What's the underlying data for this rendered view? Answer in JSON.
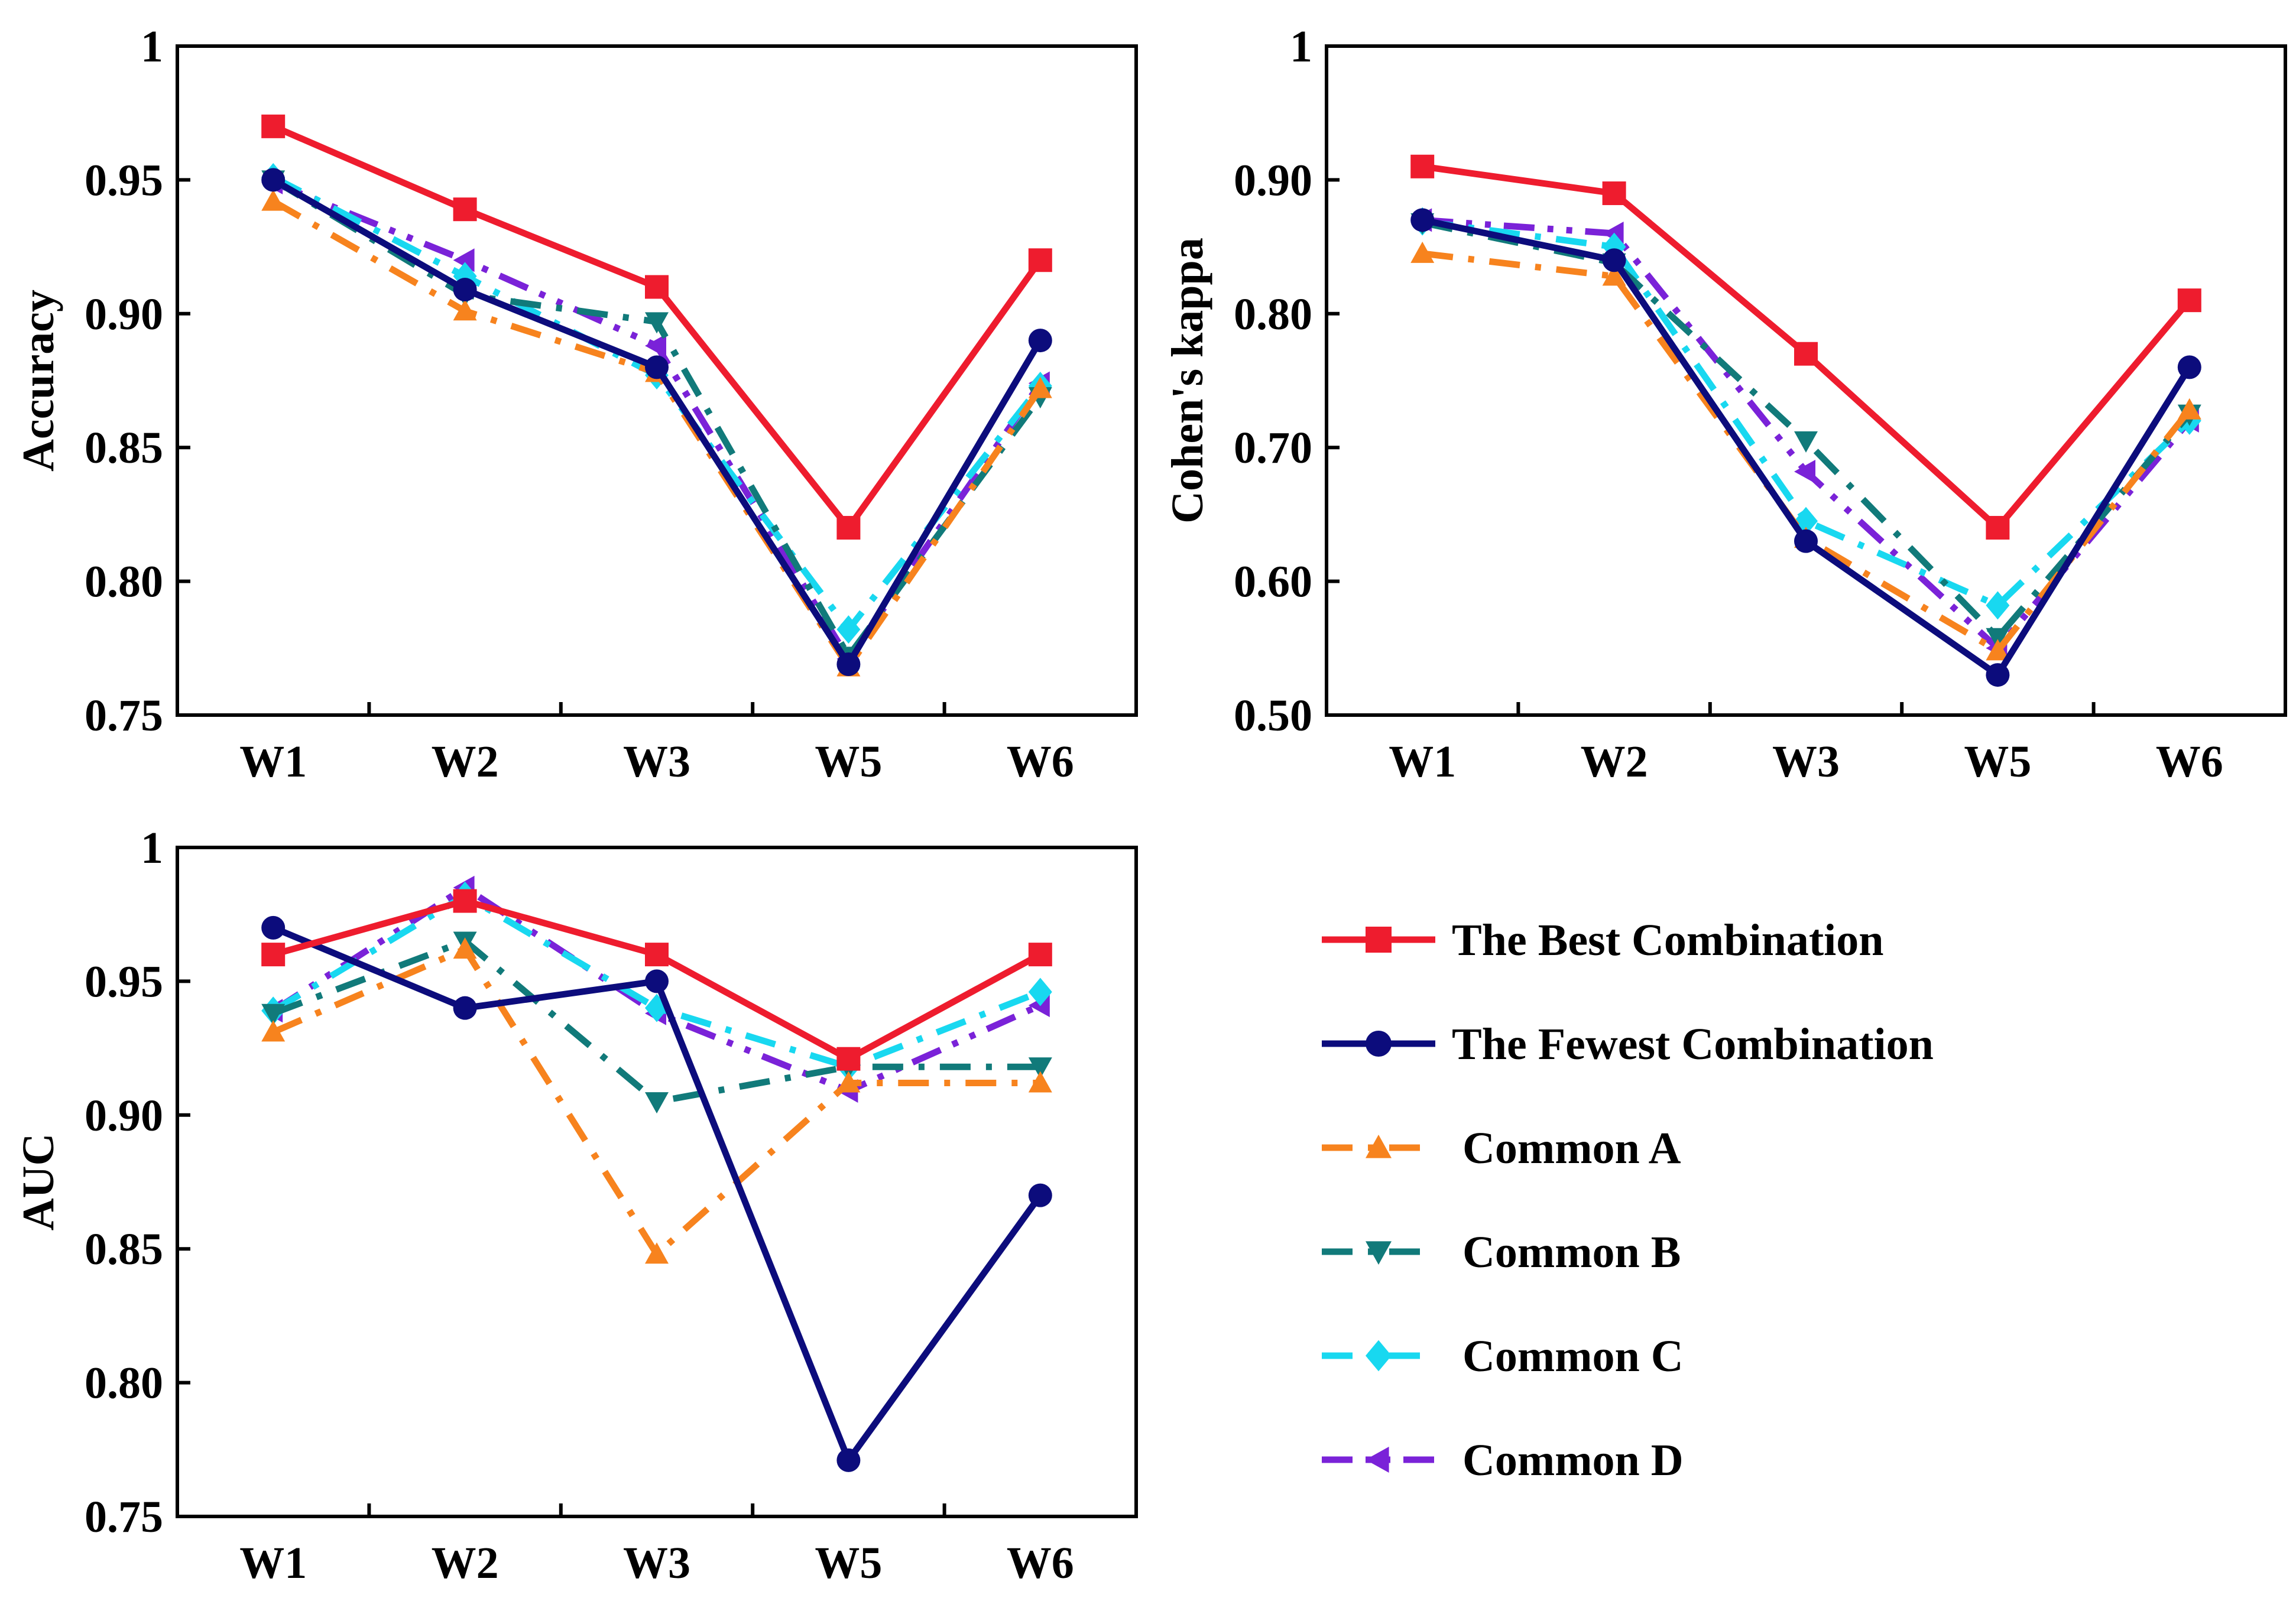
{
  "chart_data": [
    {
      "type": "line",
      "ylabel": "Accuracy",
      "xlabel": "",
      "categories": [
        "W1",
        "W2",
        "W3",
        "W5",
        "W6"
      ],
      "ylim": [
        0.75,
        1.0
      ],
      "yticks": [
        0.75,
        0.8,
        0.85,
        0.9,
        0.95,
        1.0
      ],
      "ytick_labels": [
        "0.75",
        "0.80",
        "0.85",
        "0.90",
        "0.95",
        "1"
      ],
      "series": [
        {
          "name": "The Best Combination",
          "values": [
            0.97,
            0.939,
            0.91,
            0.82,
            0.92
          ]
        },
        {
          "name": "The Fewest Combination",
          "values": [
            0.95,
            0.909,
            0.88,
            0.769,
            0.89
          ]
        },
        {
          "name": "Common A",
          "values": [
            0.942,
            0.901,
            0.878,
            0.768,
            0.872
          ]
        },
        {
          "name": "Common B",
          "values": [
            0.95,
            0.907,
            0.897,
            0.772,
            0.869
          ]
        },
        {
          "name": "Common C",
          "values": [
            0.951,
            0.914,
            0.877,
            0.782,
            0.873
          ]
        },
        {
          "name": "Common D",
          "values": [
            0.949,
            0.92,
            0.888,
            0.771,
            0.874
          ]
        }
      ]
    },
    {
      "type": "line",
      "ylabel": "Cohen's kappa",
      "xlabel": "",
      "categories": [
        "W1",
        "W2",
        "W3",
        "W5",
        "W6"
      ],
      "ylim": [
        0.5,
        1.0
      ],
      "yticks": [
        0.5,
        0.6,
        0.7,
        0.8,
        0.9,
        1.0
      ],
      "ytick_labels": [
        "0.50",
        "0.60",
        "0.70",
        "0.80",
        "0.90",
        "1"
      ],
      "series": [
        {
          "name": "The Best Combination",
          "values": [
            0.91,
            0.89,
            0.77,
            0.64,
            0.81
          ]
        },
        {
          "name": "The Fewest Combination",
          "values": [
            0.87,
            0.84,
            0.63,
            0.53,
            0.76
          ]
        },
        {
          "name": "Common A",
          "values": [
            0.845,
            0.828,
            0.632,
            0.548,
            0.728
          ]
        },
        {
          "name": "Common B",
          "values": [
            0.868,
            0.838,
            0.705,
            0.558,
            0.725
          ]
        },
        {
          "name": "Common C",
          "values": [
            0.869,
            0.85,
            0.645,
            0.582,
            0.72
          ]
        },
        {
          "name": "Common D",
          "values": [
            0.87,
            0.86,
            0.682,
            0.55,
            0.72
          ]
        }
      ]
    },
    {
      "type": "line",
      "ylabel": "AUC",
      "xlabel": "",
      "categories": [
        "W1",
        "W2",
        "W3",
        "W5",
        "W6"
      ],
      "ylim": [
        0.75,
        1.0
      ],
      "yticks": [
        0.75,
        0.8,
        0.85,
        0.9,
        0.95,
        1.0
      ],
      "ytick_labels": [
        "0.75",
        "0.80",
        "0.85",
        "0.90",
        "0.95",
        "1"
      ],
      "series": [
        {
          "name": "The Best Combination",
          "values": [
            0.96,
            0.98,
            0.96,
            0.921,
            0.96
          ]
        },
        {
          "name": "The Fewest Combination",
          "values": [
            0.97,
            0.94,
            0.95,
            0.771,
            0.87
          ]
        },
        {
          "name": "Common A",
          "values": [
            0.931,
            0.962,
            0.848,
            0.912,
            0.912
          ]
        },
        {
          "name": "Common B",
          "values": [
            0.938,
            0.965,
            0.905,
            0.918,
            0.918
          ]
        },
        {
          "name": "Common C",
          "values": [
            0.939,
            0.982,
            0.94,
            0.918,
            0.946
          ]
        },
        {
          "name": "Common D",
          "values": [
            0.939,
            0.985,
            0.938,
            0.909,
            0.941
          ]
        }
      ]
    }
  ],
  "legend": {
    "placement": "bottom-right",
    "entries": [
      {
        "name": "The Best Combination",
        "color": "#ee1c2e",
        "marker": "square",
        "dash": "solid"
      },
      {
        "name": "The Fewest Combination",
        "color": "#0c0c7c",
        "marker": "circle",
        "dash": "solid"
      },
      {
        "name": "Common A",
        "color": "#f7831e",
        "marker": "triangle-up",
        "dash": "dashdot"
      },
      {
        "name": "Common B",
        "color": "#117a7a",
        "marker": "triangle-down",
        "dash": "dashdot"
      },
      {
        "name": "Common C",
        "color": "#18d8f0",
        "marker": "diamond",
        "dash": "dashdot"
      },
      {
        "name": "Common D",
        "color": "#7a22d8",
        "marker": "triangle-left",
        "dash": "dashdotdot"
      }
    ]
  }
}
